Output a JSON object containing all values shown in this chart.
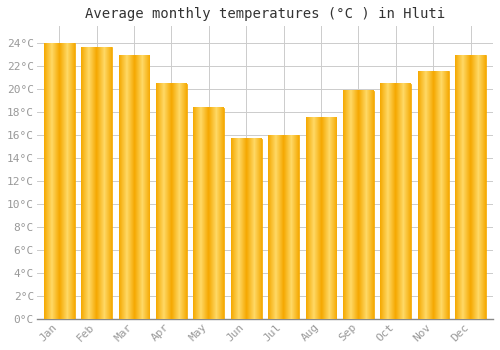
{
  "title": "Average monthly temperatures (°C ) in Hluti",
  "months": [
    "Jan",
    "Feb",
    "Mar",
    "Apr",
    "May",
    "Jun",
    "Jul",
    "Aug",
    "Sep",
    "Oct",
    "Nov",
    "Dec"
  ],
  "values": [
    24.0,
    23.7,
    23.0,
    20.5,
    18.4,
    15.7,
    16.0,
    17.6,
    19.9,
    20.5,
    21.6,
    23.0
  ],
  "bar_color_center": "#FFD966",
  "bar_color_edge": "#F5A800",
  "background_color": "#FFFFFF",
  "grid_color": "#CCCCCC",
  "ytick_labels": [
    "0°C",
    "2°C",
    "4°C",
    "6°C",
    "8°C",
    "10°C",
    "12°C",
    "14°C",
    "16°C",
    "18°C",
    "20°C",
    "22°C",
    "24°C"
  ],
  "ytick_values": [
    0,
    2,
    4,
    6,
    8,
    10,
    12,
    14,
    16,
    18,
    20,
    22,
    24
  ],
  "ylim": [
    0,
    25.5
  ],
  "title_fontsize": 10,
  "tick_fontsize": 8,
  "tick_color": "#999999",
  "font_family": "monospace"
}
